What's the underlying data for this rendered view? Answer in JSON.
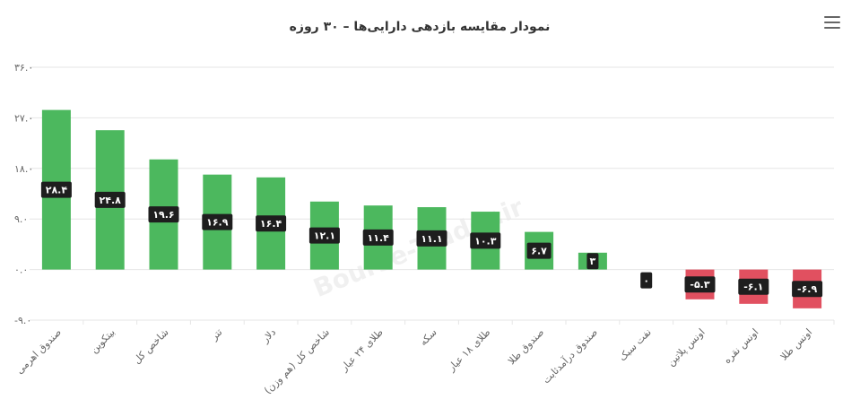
{
  "menu": {
    "icon": "hamburger-menu-icon"
  },
  "watermark": "Bourse-Trader.ir",
  "colors": {
    "positive": "#4cb85e",
    "negative": "#e15060",
    "label_bg": "#1e1e1e",
    "grid": "#e6e6e6"
  },
  "chart_data": {
    "type": "bar",
    "title": "نمودار مقایسه بازدهی دارایی‌ها – ۳۰ روزه",
    "xlabel": "",
    "ylabel": "",
    "ylim": [
      -9,
      36
    ],
    "yticks": [
      -9,
      0,
      9,
      18,
      27,
      36
    ],
    "ytick_labels": [
      "-۹.۰",
      "۰.۰",
      "۹.۰",
      "۱۸.۰",
      "۲۷.۰",
      "۳۶.۰"
    ],
    "grid": true,
    "legend": "none",
    "categories": [
      "صندوق اهرمی",
      "بیتکوین",
      "شاخص کل",
      "تتر",
      "دلار",
      "شاخص کل (هم وزن)",
      "طلای ۲۴ عیار",
      "سکه",
      "طلای ۱۸ عیار",
      "صندوق طلا",
      "صندوق درآمدثابت",
      "نفت سبک",
      "اونس پلاتین",
      "اونس نقره",
      "اونس طلا"
    ],
    "values": [
      28.4,
      24.8,
      19.6,
      16.9,
      16.4,
      12.1,
      11.4,
      11.1,
      10.3,
      6.7,
      3,
      0,
      -5.3,
      -6.1,
      -6.9
    ],
    "value_labels": [
      "۲۸.۴",
      "۲۴.۸",
      "۱۹.۶",
      "۱۶.۹",
      "۱۶.۴",
      "۱۲.۱",
      "۱۱.۴",
      "۱۱.۱",
      "۱۰.۳",
      "۶.۷",
      "۳",
      "۰",
      "-۵.۳",
      "-۶.۱",
      "-۶.۹"
    ]
  }
}
